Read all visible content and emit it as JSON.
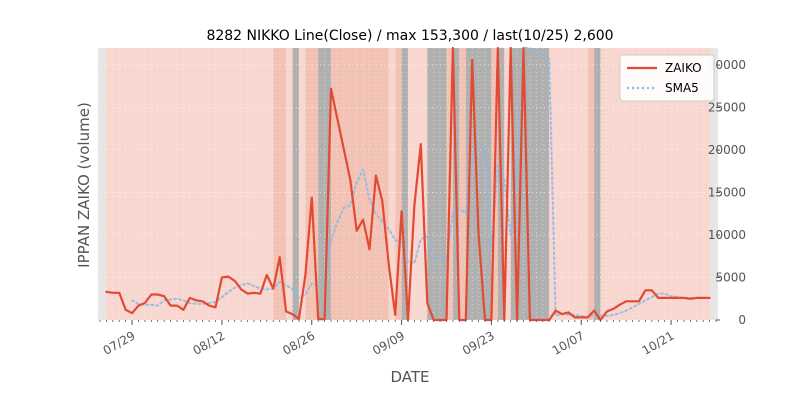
{
  "chart_data": {
    "type": "line",
    "title": "8282 NIKKO Line(Close) / max 153,300 / last(10/25) 2,600",
    "xlabel": "DATE",
    "ylabel": "IPPAN ZAIKO (volume)",
    "ylim": [
      0,
      32000
    ],
    "x_tick_labels": [
      "07/29",
      "08/12",
      "08/26",
      "09/09",
      "09/23",
      "10/07",
      "10/21"
    ],
    "x_tick_dates": [
      "2024-07-29",
      "2024-08-12",
      "2024-08-26",
      "2024-09-09",
      "2024-09-23",
      "2024-10-07",
      "2024-10-21"
    ],
    "y_ticks": [
      0,
      5000,
      10000,
      15000,
      20000,
      25000,
      30000
    ],
    "y_tick_labels": [
      "0",
      "5000",
      "10000",
      "15000",
      "20000",
      "25000",
      "30000"
    ],
    "x_range": [
      "2024-07-24",
      "2024-10-28"
    ],
    "grid": true,
    "legend_position": "top-right",
    "series": [
      {
        "name": "ZAIKO",
        "style": "solid",
        "color": "#E24A33",
        "points": [
          [
            "2024-07-25",
            3300
          ],
          [
            "2024-07-26",
            3200
          ],
          [
            "2024-07-27",
            3200
          ],
          [
            "2024-07-28",
            1200
          ],
          [
            "2024-07-29",
            800
          ],
          [
            "2024-07-30",
            1700
          ],
          [
            "2024-07-31",
            2000
          ],
          [
            "2024-08-01",
            3000
          ],
          [
            "2024-08-02",
            3000
          ],
          [
            "2024-08-03",
            2800
          ],
          [
            "2024-08-04",
            1700
          ],
          [
            "2024-08-05",
            1700
          ],
          [
            "2024-08-06",
            1200
          ],
          [
            "2024-08-07",
            2600
          ],
          [
            "2024-08-08",
            2300
          ],
          [
            "2024-08-09",
            2200
          ],
          [
            "2024-08-10",
            1700
          ],
          [
            "2024-08-11",
            1500
          ],
          [
            "2024-08-12",
            5000
          ],
          [
            "2024-08-13",
            5100
          ],
          [
            "2024-08-14",
            4600
          ],
          [
            "2024-08-15",
            3600
          ],
          [
            "2024-08-16",
            3100
          ],
          [
            "2024-08-17",
            3200
          ],
          [
            "2024-08-18",
            3100
          ],
          [
            "2024-08-19",
            5300
          ],
          [
            "2024-08-20",
            3700
          ],
          [
            "2024-08-21",
            7400
          ],
          [
            "2024-08-22",
            1000
          ],
          [
            "2024-08-23",
            700
          ],
          [
            "2024-08-24",
            100
          ],
          [
            "2024-08-25",
            5200
          ],
          [
            "2024-08-26",
            14400
          ],
          [
            "2024-08-27",
            100
          ],
          [
            "2024-08-28",
            100
          ],
          [
            "2024-08-29",
            27200
          ],
          [
            "2024-09-01",
            16500
          ],
          [
            "2024-09-02",
            10500
          ],
          [
            "2024-09-03",
            11800
          ],
          [
            "2024-09-04",
            8300
          ],
          [
            "2024-09-05",
            17000
          ],
          [
            "2024-09-06",
            14000
          ],
          [
            "2024-09-07",
            6500
          ],
          [
            "2024-09-08",
            600
          ],
          [
            "2024-09-09",
            12800
          ],
          [
            "2024-09-10",
            0
          ],
          [
            "2024-09-11",
            13500
          ],
          [
            "2024-09-12",
            20700
          ],
          [
            "2024-09-13",
            2000
          ],
          [
            "2024-09-14",
            0
          ],
          [
            "2024-09-16",
            0
          ],
          [
            "2024-09-17",
            33000
          ],
          [
            "2024-09-18",
            0
          ],
          [
            "2024-09-19",
            0
          ],
          [
            "2024-09-20",
            30600
          ],
          [
            "2024-09-21",
            10000
          ],
          [
            "2024-09-22",
            0
          ],
          [
            "2024-09-23",
            0
          ],
          [
            "2024-09-24",
            33000
          ],
          [
            "2024-09-25",
            0
          ],
          [
            "2024-09-26",
            33000
          ],
          [
            "2024-09-27",
            0
          ],
          [
            "2024-09-28",
            33000
          ],
          [
            "2024-09-29",
            0
          ],
          [
            "2024-09-30",
            0
          ],
          [
            "2024-10-01",
            0
          ],
          [
            "2024-10-02",
            0
          ],
          [
            "2024-10-03",
            1100
          ],
          [
            "2024-10-04",
            700
          ],
          [
            "2024-10-05",
            900
          ],
          [
            "2024-10-06",
            300
          ],
          [
            "2024-10-07",
            300
          ],
          [
            "2024-10-08",
            300
          ],
          [
            "2024-10-09",
            1100
          ],
          [
            "2024-10-10",
            0
          ],
          [
            "2024-10-11",
            1000
          ],
          [
            "2024-10-12",
            1300
          ],
          [
            "2024-10-13",
            1800
          ],
          [
            "2024-10-14",
            2200
          ],
          [
            "2024-10-15",
            2200
          ],
          [
            "2024-10-16",
            2200
          ],
          [
            "2024-10-17",
            3500
          ],
          [
            "2024-10-18",
            3500
          ],
          [
            "2024-10-19",
            2600
          ],
          [
            "2024-10-20",
            2600
          ],
          [
            "2024-10-21",
            2600
          ],
          [
            "2024-10-22",
            2600
          ],
          [
            "2024-10-23",
            2600
          ],
          [
            "2024-10-24",
            2500
          ],
          [
            "2024-10-25",
            2600
          ],
          [
            "2024-10-26",
            2600
          ],
          [
            "2024-10-27",
            2600
          ]
        ]
      },
      {
        "name": "SMA5",
        "style": "dotted",
        "color": "#8EBAE5",
        "points": [
          [
            "2024-07-29",
            2300
          ],
          [
            "2024-07-30",
            1900
          ],
          [
            "2024-07-31",
            1800
          ],
          [
            "2024-08-01",
            1800
          ],
          [
            "2024-08-02",
            1700
          ],
          [
            "2024-08-03",
            2300
          ],
          [
            "2024-08-04",
            2400
          ],
          [
            "2024-08-05",
            2500
          ],
          [
            "2024-08-06",
            2300
          ],
          [
            "2024-08-07",
            2000
          ],
          [
            "2024-08-08",
            1900
          ],
          [
            "2024-08-09",
            1900
          ],
          [
            "2024-08-10",
            2000
          ],
          [
            "2024-08-11",
            2100
          ],
          [
            "2024-08-12",
            2700
          ],
          [
            "2024-08-13",
            3300
          ],
          [
            "2024-08-14",
            3800
          ],
          [
            "2024-08-15",
            4100
          ],
          [
            "2024-08-16",
            4300
          ],
          [
            "2024-08-17",
            4000
          ],
          [
            "2024-08-18",
            3700
          ],
          [
            "2024-08-19",
            3600
          ],
          [
            "2024-08-20",
            3700
          ],
          [
            "2024-08-21",
            4500
          ],
          [
            "2024-08-22",
            4100
          ],
          [
            "2024-08-23",
            3600
          ],
          [
            "2024-08-24",
            2600
          ],
          [
            "2024-08-25",
            3000
          ],
          [
            "2024-08-26",
            4300
          ],
          [
            "2024-08-27",
            4100
          ],
          [
            "2024-08-28",
            4000
          ],
          [
            "2024-08-29",
            9400
          ],
          [
            "2024-08-30",
            11500
          ],
          [
            "2024-08-31",
            13200
          ],
          [
            "2024-09-01",
            13500
          ],
          [
            "2024-09-02",
            16200
          ],
          [
            "2024-09-03",
            17700
          ],
          [
            "2024-09-04",
            14200
          ],
          [
            "2024-09-05",
            12500
          ],
          [
            "2024-09-06",
            11600
          ],
          [
            "2024-09-07",
            10700
          ],
          [
            "2024-09-08",
            9400
          ],
          [
            "2024-09-09",
            9100
          ],
          [
            "2024-09-10",
            6800
          ],
          [
            "2024-09-11",
            6700
          ],
          [
            "2024-09-12",
            9500
          ],
          [
            "2024-09-13",
            9800
          ],
          [
            "2024-09-14",
            7200
          ],
          [
            "2024-09-15",
            7200
          ],
          [
            "2024-09-16",
            7000
          ],
          [
            "2024-09-17",
            12700
          ],
          [
            "2024-09-18",
            13000
          ],
          [
            "2024-09-19",
            12600
          ],
          [
            "2024-09-20",
            18800
          ],
          [
            "2024-09-21",
            20700
          ],
          [
            "2024-09-22",
            20300
          ],
          [
            "2024-09-23",
            8100
          ],
          [
            "2024-09-24",
            18300
          ],
          [
            "2024-09-25",
            16600
          ],
          [
            "2024-09-26",
            10000
          ],
          [
            "2024-09-27",
            16500
          ],
          [
            "2024-09-28",
            33000
          ],
          [
            "2024-09-29",
            33000
          ],
          [
            "2024-09-30",
            31500
          ],
          [
            "2024-10-01",
            31000
          ],
          [
            "2024-10-02",
            30700
          ],
          [
            "2024-10-03",
            500
          ],
          [
            "2024-10-04",
            700
          ],
          [
            "2024-10-05",
            600
          ],
          [
            "2024-10-06",
            600
          ],
          [
            "2024-10-07",
            500
          ],
          [
            "2024-10-08",
            300
          ],
          [
            "2024-10-09",
            600
          ],
          [
            "2024-10-10",
            500
          ],
          [
            "2024-10-11",
            500
          ],
          [
            "2024-10-12",
            600
          ],
          [
            "2024-10-13",
            800
          ],
          [
            "2024-10-14",
            1100
          ],
          [
            "2024-10-15",
            1500
          ],
          [
            "2024-10-16",
            1900
          ],
          [
            "2024-10-17",
            2300
          ],
          [
            "2024-10-18",
            2700
          ],
          [
            "2024-10-19",
            3100
          ],
          [
            "2024-10-20",
            3100
          ],
          [
            "2024-10-21",
            2800
          ],
          [
            "2024-10-22",
            2700
          ],
          [
            "2024-10-23",
            2600
          ],
          [
            "2024-10-24",
            2600
          ],
          [
            "2024-10-25",
            2600
          ],
          [
            "2024-10-26",
            2600
          ]
        ]
      }
    ],
    "background_bands": {
      "color_light": "#F7D7CF",
      "color_medium": "#F2C2B5",
      "color_gray": "#B0B0B0",
      "light": [
        [
          "2024-07-24",
          "2024-10-28"
        ]
      ],
      "medium": [
        [
          "2024-08-20",
          "2024-08-22"
        ],
        [
          "2024-08-25",
          "2024-08-28"
        ],
        [
          "2024-08-29",
          "2024-09-07"
        ],
        [
          "2024-09-08",
          "2024-09-10"
        ],
        [
          "2024-09-13",
          "2024-09-15"
        ],
        [
          "2024-09-16",
          "2024-09-22"
        ],
        [
          "2024-09-23",
          "2024-09-25"
        ],
        [
          "2024-10-08",
          "2024-10-10"
        ]
      ],
      "gray": [
        [
          "2024-08-23",
          "2024-08-24"
        ],
        [
          "2024-08-27",
          "2024-08-28"
        ],
        [
          "2024-08-28",
          "2024-08-29"
        ],
        [
          "2024-09-09",
          "2024-09-10"
        ],
        [
          "2024-09-13",
          "2024-09-16"
        ],
        [
          "2024-09-17",
          "2024-09-18"
        ],
        [
          "2024-09-19",
          "2024-09-23"
        ],
        [
          "2024-09-24",
          "2024-09-25"
        ],
        [
          "2024-09-26",
          "2024-10-02"
        ],
        [
          "2024-10-09",
          "2024-10-10"
        ]
      ]
    }
  }
}
